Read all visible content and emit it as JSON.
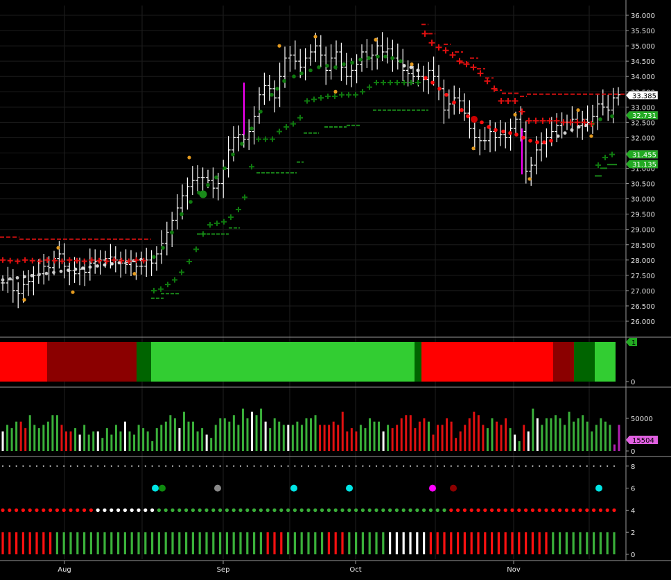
{
  "chart_data": {
    "type": "candlestick",
    "x_months": [
      "Aug",
      "Sep",
      "Oct",
      "Nov"
    ],
    "price_panel": {
      "yticks": [
        "36.000",
        "35.500",
        "35.000",
        "34.500",
        "34.000",
        "33.500",
        "33.000",
        "32.500",
        "32.000",
        "31.500",
        "31.000",
        "30.500",
        "30.000",
        "29.500",
        "29.000",
        "28.500",
        "28.000",
        "27.500",
        "27.000",
        "26.500",
        "26.000"
      ],
      "ylim": [
        25.65,
        36.25
      ],
      "last_labels": [
        {
          "text": "33.385",
          "value": 33.385,
          "bg": "#ffffff",
          "fg": "#000000"
        },
        {
          "text": "32.731",
          "value": 32.731,
          "bg": "#22aa22",
          "fg": "#ffffff"
        },
        {
          "text": "31.455",
          "value": 31.455,
          "bg": "#22aa22",
          "fg": "#ffffff"
        },
        {
          "text": "31.135",
          "value": 31.135,
          "bg": "#22aa22",
          "fg": "#ffffff"
        }
      ],
      "bars_close": [
        27.25,
        27.35,
        27.0,
        26.9,
        27.2,
        27.3,
        27.5,
        27.55,
        27.8,
        27.75,
        28.05,
        28.2,
        27.8,
        27.65,
        27.55,
        27.7,
        27.6,
        27.9,
        27.95,
        28.0,
        28.05,
        28.1,
        28.0,
        27.9,
        27.85,
        27.95,
        27.8,
        27.8,
        28.0,
        27.9,
        28.2,
        28.55,
        28.9,
        29.3,
        29.7,
        30.1,
        30.4,
        30.6,
        30.7,
        30.7,
        30.6,
        30.35,
        30.5,
        31.0,
        31.6,
        32.0,
        32.1,
        31.95,
        32.2,
        32.7,
        33.4,
        33.7,
        33.6,
        33.3,
        34.0,
        34.6,
        34.7,
        34.5,
        34.3,
        34.6,
        34.8,
        35.0,
        34.7,
        34.2,
        34.6,
        34.8,
        34.3,
        34.0,
        34.2,
        34.4,
        34.8,
        34.6,
        34.7,
        35.0,
        34.8,
        34.9,
        34.6,
        34.5,
        34.2,
        34.1,
        34.0,
        34.0,
        33.9,
        34.2,
        34.0,
        33.6,
        32.9,
        33.1,
        33.3,
        33.2,
        32.8,
        32.3,
        32.0,
        31.9,
        31.9,
        32.2,
        32.0,
        32.1,
        32.0,
        32.3,
        32.6,
        32.2,
        30.9,
        31.1,
        31.6,
        31.8,
        32.0,
        32.2,
        32.4,
        32.5,
        32.5,
        32.6,
        32.4,
        32.6,
        32.5,
        32.7,
        33.1,
        33.0,
        32.9,
        33.3,
        33.4
      ],
      "resistance_dashes": [
        {
          "y": 28.75,
          "x_range": [
            0,
            28
          ]
        },
        {
          "y": 28.7,
          "x_range": [
            28,
            218
          ]
        },
        {
          "y": 33.4,
          "x_range": [
            750,
            905
          ]
        },
        {
          "y": 32.9,
          "x_range": [
            538,
            618
          ]
        },
        {
          "y": 28.0,
          "x_range": [
            0,
            222
          ]
        }
      ]
    },
    "indicator_panel": {
      "ytick": "0",
      "marker": "1",
      "segments": [
        {
          "from": 0,
          "to": 68,
          "color": "#ff0000"
        },
        {
          "from": 68,
          "to": 197,
          "color": "#8b0000"
        },
        {
          "from": 197,
          "to": 218,
          "color": "#006400"
        },
        {
          "from": 218,
          "to": 598,
          "color": "#32cd32"
        },
        {
          "from": 598,
          "to": 608,
          "color": "#006400"
        },
        {
          "from": 608,
          "to": 798,
          "color": "#ff0000"
        },
        {
          "from": 798,
          "to": 828,
          "color": "#8b0000"
        },
        {
          "from": 828,
          "to": 858,
          "color": "#006400"
        },
        {
          "from": 858,
          "to": 888,
          "color": "#32cd32"
        }
      ]
    },
    "volume_panel": {
      "yticks": [
        "50000",
        "0"
      ],
      "ylim": [
        0,
        90000
      ],
      "last_label": "15504",
      "values": [
        30,
        40,
        35,
        45,
        45,
        35,
        55,
        40,
        35,
        40,
        45,
        55,
        55,
        40,
        30,
        30,
        35,
        25,
        40,
        25,
        30,
        30,
        20,
        35,
        25,
        40,
        30,
        45,
        30,
        25,
        40,
        35,
        30,
        15,
        35,
        40,
        45,
        55,
        50,
        35,
        60,
        45,
        45,
        30,
        35,
        25,
        20,
        40,
        50,
        50,
        45,
        55,
        40,
        65,
        50,
        60,
        55,
        65,
        45,
        35,
        50,
        45,
        40,
        40,
        40,
        45,
        40,
        50,
        50,
        55,
        40,
        40,
        40,
        45,
        40,
        60,
        30,
        35,
        30,
        40,
        35,
        50,
        45,
        45,
        30,
        40,
        35,
        40,
        50,
        55,
        55,
        35,
        45,
        50,
        45,
        25,
        40,
        40,
        50,
        45,
        20,
        30,
        40,
        50,
        60,
        55,
        40,
        35,
        50,
        45,
        40,
        50,
        35,
        25,
        15,
        40,
        30,
        65,
        50,
        40,
        50,
        50,
        55,
        50,
        40,
        60,
        45,
        50,
        55,
        45,
        30,
        40,
        50,
        45,
        40,
        10,
        40
      ],
      "colors_pattern": "mixed"
    },
    "signals_panel": {
      "yticks": [
        "8",
        "6",
        "4",
        "2",
        "0"
      ],
      "ylim": [
        -0.6,
        8.6
      ]
    }
  }
}
